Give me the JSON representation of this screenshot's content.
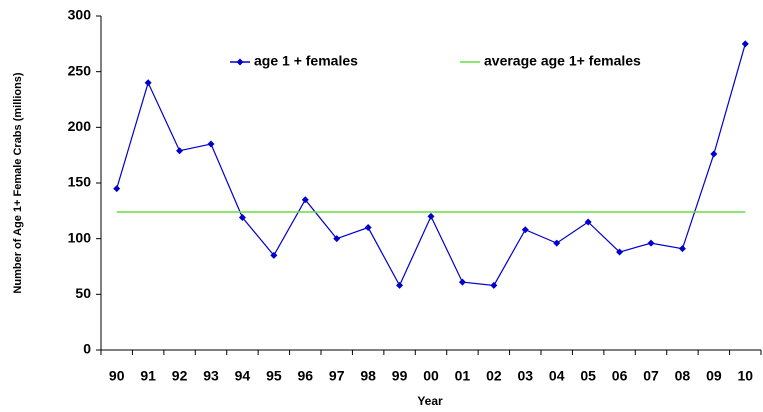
{
  "chart_data": {
    "type": "line",
    "x_label": "Year",
    "y_label": "Number of Age 1+ Female Crabs (millions)",
    "categories": [
      "90",
      "91",
      "92",
      "93",
      "94",
      "95",
      "96",
      "97",
      "98",
      "99",
      "00",
      "01",
      "02",
      "03",
      "04",
      "05",
      "06",
      "07",
      "08",
      "09",
      "10"
    ],
    "series": [
      {
        "name": "age 1 + females",
        "color": "#0000cc",
        "marker": "diamond",
        "values": [
          145,
          240,
          179,
          185,
          119,
          85,
          135,
          100,
          110,
          58,
          120,
          61,
          58,
          108,
          96,
          115,
          88,
          96,
          91,
          176,
          275
        ]
      },
      {
        "name": "average age 1+ females",
        "color": "#66dd44",
        "marker": "none",
        "values": [
          124,
          124,
          124,
          124,
          124,
          124,
          124,
          124,
          124,
          124,
          124,
          124,
          124,
          124,
          124,
          124,
          124,
          124,
          124,
          124,
          124
        ]
      }
    ],
    "ylim": [
      0,
      300
    ],
    "yticks": [
      0,
      50,
      100,
      150,
      200,
      250,
      300
    ],
    "grid": false,
    "legend": "top"
  }
}
